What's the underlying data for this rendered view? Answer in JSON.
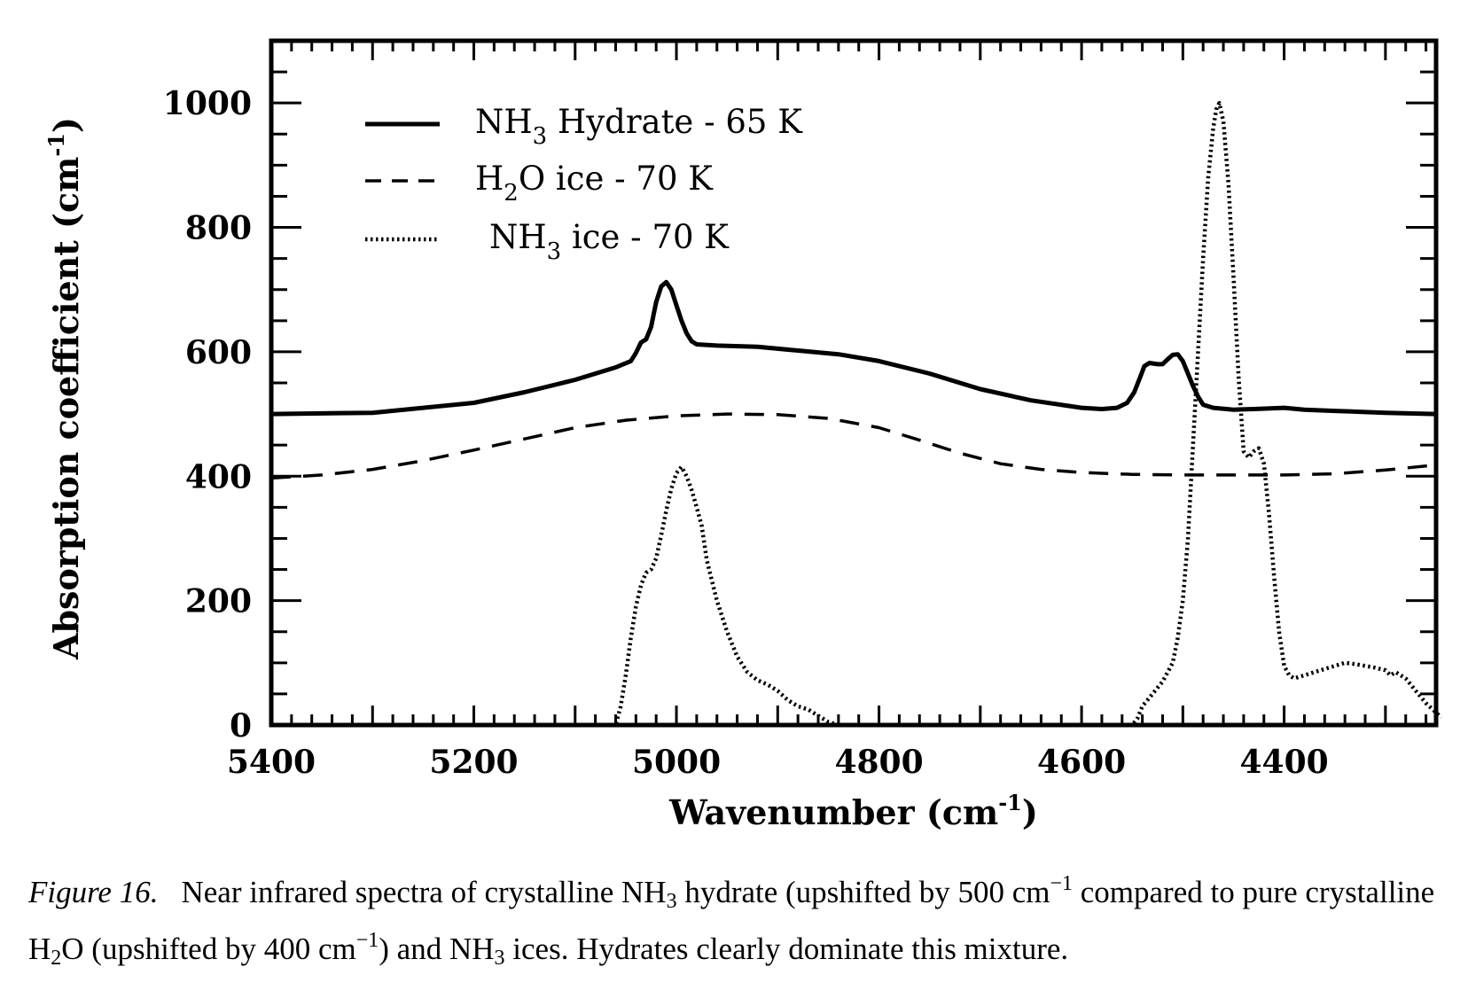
{
  "chart_data": {
    "type": "line",
    "xlabel": "Wavenumber (cm-1)",
    "ylabel": "Absorption coefficient (cm-1)",
    "xlim": [
      5400,
      4250
    ],
    "ylim": [
      0,
      1100
    ],
    "x_ticks": [
      5400,
      5200,
      5000,
      4800,
      4600,
      4400
    ],
    "y_ticks": [
      0,
      200,
      400,
      600,
      800,
      1000
    ],
    "grid": false,
    "legend_position": "top-left",
    "legend": [
      {
        "formula": "NH",
        "sub": "3",
        "label": "Hydrate - 65 K",
        "style": "solid"
      },
      {
        "formula": "H",
        "sub": "2",
        "formula_tail": "O",
        "label": "ice  -  70 K",
        "style": "dashed"
      },
      {
        "formula": "NH",
        "sub": "3",
        "label": "ice  -  70 K",
        "style": "dotted"
      }
    ],
    "series": [
      {
        "name": "NH3 Hydrate - 65 K",
        "style": "solid",
        "points": [
          [
            5400,
            500
          ],
          [
            5300,
            502
          ],
          [
            5200,
            518
          ],
          [
            5150,
            535
          ],
          [
            5100,
            555
          ],
          [
            5060,
            575
          ],
          [
            5045,
            585
          ],
          [
            5040,
            598
          ],
          [
            5035,
            615
          ],
          [
            5030,
            620
          ],
          [
            5025,
            640
          ],
          [
            5020,
            680
          ],
          [
            5015,
            705
          ],
          [
            5010,
            712
          ],
          [
            5005,
            700
          ],
          [
            5000,
            675
          ],
          [
            4995,
            650
          ],
          [
            4990,
            630
          ],
          [
            4985,
            617
          ],
          [
            4980,
            612
          ],
          [
            4960,
            610
          ],
          [
            4920,
            608
          ],
          [
            4880,
            602
          ],
          [
            4840,
            596
          ],
          [
            4800,
            585
          ],
          [
            4750,
            565
          ],
          [
            4700,
            540
          ],
          [
            4650,
            522
          ],
          [
            4600,
            510
          ],
          [
            4580,
            508
          ],
          [
            4565,
            510
          ],
          [
            4555,
            518
          ],
          [
            4548,
            535
          ],
          [
            4542,
            560
          ],
          [
            4538,
            577
          ],
          [
            4533,
            582
          ],
          [
            4525,
            580
          ],
          [
            4520,
            580
          ],
          [
            4515,
            588
          ],
          [
            4510,
            595
          ],
          [
            4505,
            596
          ],
          [
            4500,
            585
          ],
          [
            4495,
            565
          ],
          [
            4490,
            545
          ],
          [
            4485,
            528
          ],
          [
            4480,
            515
          ],
          [
            4470,
            510
          ],
          [
            4450,
            507
          ],
          [
            4430,
            508
          ],
          [
            4400,
            510
          ],
          [
            4380,
            507
          ],
          [
            4350,
            505
          ],
          [
            4300,
            502
          ],
          [
            4250,
            500
          ]
        ]
      },
      {
        "name": "H2O ice - 70 K",
        "style": "dashed",
        "points": [
          [
            5400,
            397
          ],
          [
            5350,
            402
          ],
          [
            5300,
            411
          ],
          [
            5250,
            425
          ],
          [
            5200,
            442
          ],
          [
            5150,
            460
          ],
          [
            5100,
            478
          ],
          [
            5050,
            490
          ],
          [
            5000,
            497
          ],
          [
            4950,
            500
          ],
          [
            4900,
            499
          ],
          [
            4850,
            493
          ],
          [
            4800,
            478
          ],
          [
            4760,
            458
          ],
          [
            4720,
            437
          ],
          [
            4680,
            420
          ],
          [
            4640,
            411
          ],
          [
            4600,
            406
          ],
          [
            4550,
            403
          ],
          [
            4500,
            402
          ],
          [
            4450,
            402
          ],
          [
            4400,
            402
          ],
          [
            4350,
            404
          ],
          [
            4300,
            410
          ],
          [
            4250,
            418
          ]
        ]
      },
      {
        "name": "NH3 ice - 70 K",
        "style": "dotted",
        "points": [
          [
            5400,
            0
          ],
          [
            5070,
            0
          ],
          [
            5060,
            0
          ],
          [
            5055,
            30
          ],
          [
            5050,
            80
          ],
          [
            5045,
            140
          ],
          [
            5040,
            190
          ],
          [
            5035,
            225
          ],
          [
            5030,
            245
          ],
          [
            5025,
            250
          ],
          [
            5020,
            268
          ],
          [
            5015,
            305
          ],
          [
            5010,
            345
          ],
          [
            5005,
            380
          ],
          [
            5000,
            405
          ],
          [
            4995,
            415
          ],
          [
            4990,
            400
          ],
          [
            4985,
            378
          ],
          [
            4980,
            350
          ],
          [
            4975,
            320
          ],
          [
            4970,
            265
          ],
          [
            4960,
            200
          ],
          [
            4950,
            150
          ],
          [
            4940,
            110
          ],
          [
            4930,
            85
          ],
          [
            4920,
            72
          ],
          [
            4910,
            65
          ],
          [
            4900,
            55
          ],
          [
            4890,
            40
          ],
          [
            4880,
            30
          ],
          [
            4870,
            25
          ],
          [
            4860,
            15
          ],
          [
            4850,
            5
          ],
          [
            4840,
            0
          ],
          [
            4550,
            0
          ],
          [
            4545,
            10
          ],
          [
            4540,
            30
          ],
          [
            4530,
            50
          ],
          [
            4520,
            70
          ],
          [
            4510,
            100
          ],
          [
            4505,
            140
          ],
          [
            4500,
            200
          ],
          [
            4495,
            300
          ],
          [
            4490,
            450
          ],
          [
            4485,
            600
          ],
          [
            4480,
            750
          ],
          [
            4475,
            880
          ],
          [
            4470,
            960
          ],
          [
            4467,
            990
          ],
          [
            4464,
            1000
          ],
          [
            4460,
            970
          ],
          [
            4455,
            870
          ],
          [
            4450,
            720
          ],
          [
            4445,
            560
          ],
          [
            4440,
            440
          ],
          [
            4435,
            430
          ],
          [
            4430,
            440
          ],
          [
            4425,
            445
          ],
          [
            4420,
            420
          ],
          [
            4415,
            340
          ],
          [
            4410,
            240
          ],
          [
            4405,
            150
          ],
          [
            4400,
            95
          ],
          [
            4395,
            80
          ],
          [
            4390,
            75
          ],
          [
            4380,
            80
          ],
          [
            4370,
            85
          ],
          [
            4360,
            90
          ],
          [
            4350,
            95
          ],
          [
            4340,
            100
          ],
          [
            4330,
            98
          ],
          [
            4320,
            95
          ],
          [
            4310,
            92
          ],
          [
            4300,
            88
          ],
          [
            4295,
            80
          ],
          [
            4290,
            85
          ],
          [
            4280,
            75
          ],
          [
            4270,
            55
          ],
          [
            4260,
            35
          ],
          [
            4250,
            20
          ],
          [
            4245,
            12
          ]
        ]
      }
    ]
  },
  "caption": {
    "lead": "Figure 16.",
    "parts": [
      {
        "t": "Near infrared spectra of crystalline NH"
      },
      {
        "sub": "3"
      },
      {
        "t": " hydrate (upshifted by 500 cm"
      },
      {
        "sup": "−1"
      },
      {
        "t": " compared to pure crystalline H"
      },
      {
        "sub": "2"
      },
      {
        "t": "O (upshifted by 400 cm"
      },
      {
        "sup": "−1"
      },
      {
        "t": ") and NH"
      },
      {
        "sub": "3"
      },
      {
        "t": " ices. Hydrates clearly dominate this mixture."
      }
    ]
  }
}
